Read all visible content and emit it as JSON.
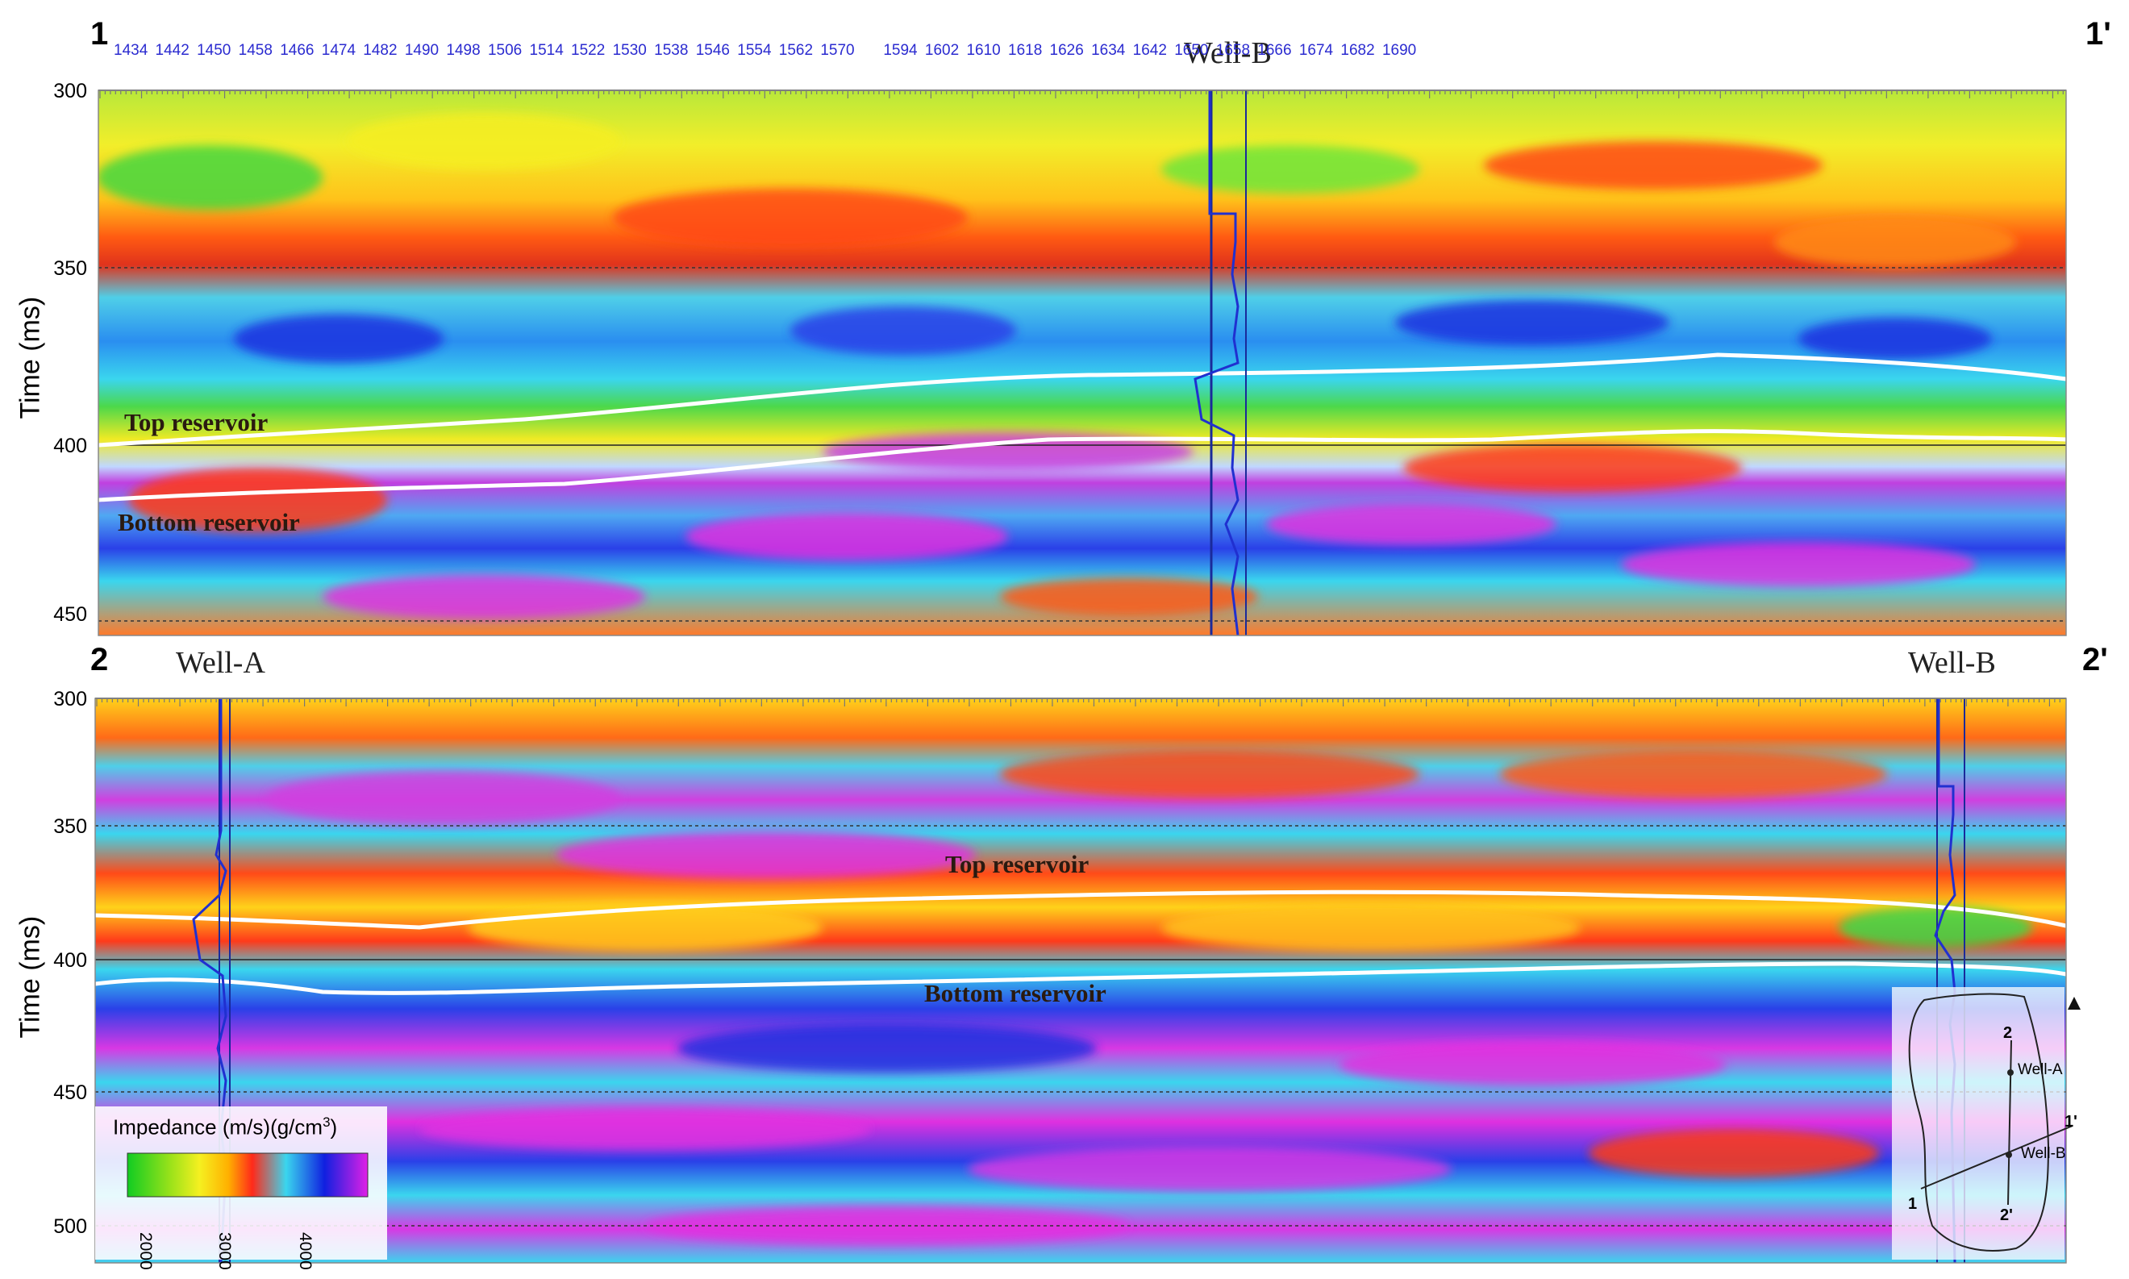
{
  "panel_top": {
    "corner_left": "1",
    "corner_right": "1'",
    "well_label": "Well-B",
    "trace_numbers": [
      "1434",
      "1442",
      "1450",
      "1458",
      "1466",
      "1474",
      "1482",
      "1490",
      "1498",
      "1506",
      "1514",
      "1522",
      "1530",
      "1538",
      "1546",
      "1554",
      "1562",
      "1570",
      "1594",
      "1602",
      "1610",
      "1618",
      "1626",
      "1634",
      "1642",
      "1650",
      "1658",
      "1666",
      "1674",
      "1682",
      "1690"
    ],
    "y_ticks": [
      "300",
      "350",
      "400",
      "450"
    ],
    "y_title": "Time (ms)",
    "horizon_top": "Top reservoir",
    "horizon_bottom": "Bottom reservoir"
  },
  "panel_bottom": {
    "corner_left": "2",
    "corner_right": "2'",
    "well_a_label": "Well-A",
    "well_b_label": "Well-B",
    "y_ticks": [
      "300",
      "350",
      "400",
      "450",
      "500"
    ],
    "y_title": "Time (ms)",
    "horizon_top": "Top reservoir",
    "horizon_bottom": "Bottom reservoir"
  },
  "legend": {
    "title": "Impedance (m/s)(g/cm",
    "title_sup": "3",
    "title_end": ")",
    "ticks": [
      "2000",
      "3000",
      "4000"
    ]
  },
  "inset_map": {
    "labels": {
      "two": "2",
      "two_prime": "2'",
      "one": "1",
      "one_prime": "1'",
      "well_a": "Well-A",
      "well_b": "Well-B"
    }
  },
  "colors": {
    "well_log": "#2030d0",
    "horizon": "#ffffff",
    "ramp": [
      "#11cc22",
      "#9be21a",
      "#f5f020",
      "#ffb000",
      "#ff2a1a",
      "#3ad6ee",
      "#1020e0",
      "#e020e6"
    ]
  }
}
